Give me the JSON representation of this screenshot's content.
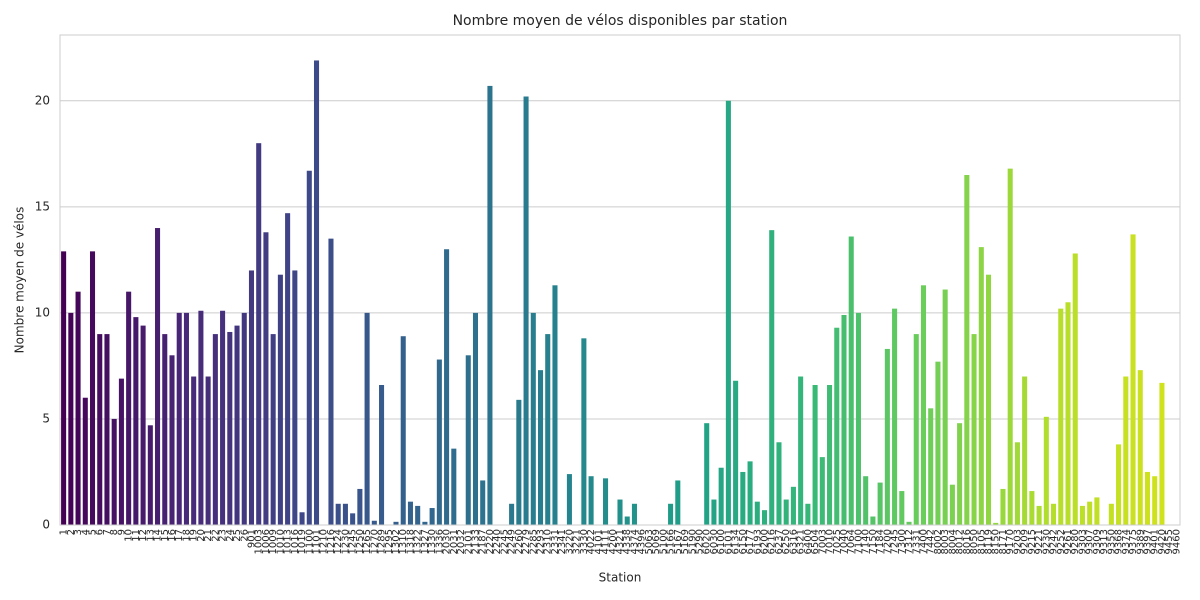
{
  "chart_data": {
    "type": "bar",
    "title": "Nombre moyen de vélos disponibles par station",
    "xlabel": "Station",
    "ylabel": "Nombre moyen de vélos",
    "categories": [
      "1",
      "2",
      "3",
      "4",
      "5",
      "6",
      "7",
      "8",
      "9",
      "10",
      "11",
      "12",
      "13",
      "14",
      "15",
      "16",
      "17",
      "18",
      "19",
      "20",
      "21",
      "22",
      "23",
      "24",
      "25",
      "26",
      "901",
      "1003",
      "1006",
      "1009",
      "1010",
      "1013",
      "1016",
      "1019",
      "1100",
      "1101",
      "1210",
      "1216",
      "1224",
      "1230",
      "1245",
      "1250",
      "1265",
      "1270",
      "1289",
      "1295",
      "1302",
      "1310",
      "1318",
      "1322",
      "1327",
      "1330",
      "1336",
      "2030",
      "2031",
      "2032",
      "2101",
      "2133",
      "2187",
      "2220",
      "2240",
      "2245",
      "2249",
      "2260",
      "2279",
      "2285",
      "2293",
      "2310",
      "2331",
      "2341",
      "3220",
      "3221",
      "3330",
      "4022",
      "4101",
      "4111",
      "4200",
      "4321",
      "4338",
      "4374",
      "4396",
      "5063",
      "5069",
      "5100",
      "5166",
      "5167",
      "5169",
      "5190",
      "5290",
      "6020",
      "6030",
      "6100",
      "6101",
      "6134",
      "6150",
      "6177",
      "6193",
      "6200",
      "6216",
      "6237",
      "6250",
      "6316",
      "6321",
      "6400",
      "6504",
      "7003",
      "7010",
      "7025",
      "7040",
      "7064",
      "7100",
      "7140",
      "7150",
      "7184",
      "7200",
      "7245",
      "7300",
      "7312",
      "7331",
      "7400",
      "7442",
      "8002",
      "8003",
      "8004",
      "8012",
      "8016",
      "8050",
      "8105",
      "8119",
      "8150",
      "8171",
      "9170",
      "9203",
      "9209",
      "9215",
      "9221",
      "9230",
      "9242",
      "9252",
      "9261",
      "9280",
      "9303",
      "9307",
      "9309",
      "9313",
      "9350",
      "9368",
      "9374",
      "9375",
      "9389",
      "9397",
      "9401",
      "9420",
      "9455",
      "9460"
    ],
    "values": [
      12.9,
      10,
      11,
      6,
      12.9,
      9,
      9,
      5,
      6.9,
      11,
      9.8,
      9.4,
      4.7,
      14,
      9,
      8,
      10,
      10,
      7,
      10.1,
      7,
      9,
      10.1,
      9.1,
      9.4,
      10,
      12,
      18,
      13.8,
      9,
      11.8,
      14.7,
      12,
      0.6,
      16.7,
      21.9,
      0,
      13.5,
      1,
      1,
      0.55,
      1.7,
      10,
      0.2,
      6.6,
      0,
      0.15,
      8.9,
      1.1,
      0.9,
      0.15,
      0.8,
      7.8,
      13,
      3.6,
      0,
      8,
      10,
      2.1,
      20.7,
      0,
      0,
      1,
      5.9,
      20.2,
      10,
      7.3,
      9,
      11.3,
      0,
      2.4,
      0,
      8.8,
      2.3,
      0,
      2.2,
      0,
      1.2,
      0.4,
      1,
      0,
      0,
      0,
      0,
      1,
      2.1,
      0,
      0,
      0,
      4.8,
      1.2,
      2.7,
      20,
      6.8,
      2.5,
      3,
      1.1,
      0.7,
      13.9,
      3.9,
      1.2,
      1.8,
      7,
      1,
      6.6,
      3.2,
      6.6,
      9.3,
      9.9,
      13.6,
      10,
      2.3,
      0.4,
      2,
      8.3,
      10.2,
      1.6,
      0.15,
      9,
      11.3,
      5.5,
      7.7,
      11.1,
      1.9,
      4.8,
      16.5,
      9,
      13.1,
      11.8,
      0.1,
      1.7,
      16.8,
      3.9,
      7,
      1.6,
      0.9,
      5.1,
      1,
      10.2,
      10.5,
      12.8,
      0.9,
      1.1,
      1.3,
      0,
      1,
      3.8,
      7,
      13.7,
      7.3,
      2.5,
      2.3,
      6.7,
      0,
      0
    ],
    "palette": [
      "#440154",
      "#482878",
      "#3e4989",
      "#31688e",
      "#26828e",
      "#1f9e89",
      "#35b779",
      "#6ece58",
      "#b5de2b",
      "#d4e21a"
    ],
    "ylim": [
      0,
      23.1
    ],
    "yticks": [
      0,
      5,
      10,
      15,
      20
    ],
    "grid": true
  }
}
